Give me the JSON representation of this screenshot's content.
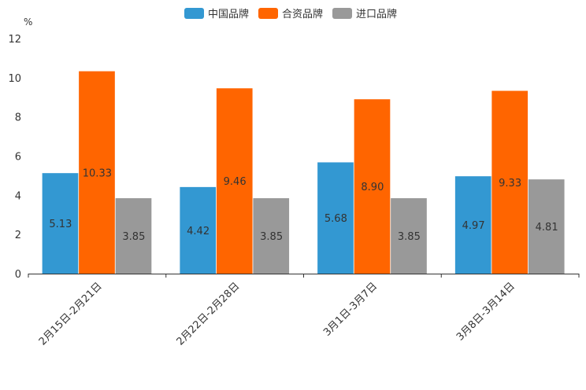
{
  "chart_data": {
    "type": "bar",
    "unit": "%",
    "categories": [
      "2月15日-2月21日",
      "2月22日-2月28日",
      "3月1日-3月7日",
      "3月8日-3月14日"
    ],
    "series": [
      {
        "name": "中国品牌",
        "color": "#3398d2",
        "values": [
          5.13,
          4.42,
          5.68,
          4.97
        ],
        "labels": [
          "5.13",
          "4.42",
          "5.68",
          "4.97"
        ]
      },
      {
        "name": "合资品牌",
        "color": "#ff6500",
        "values": [
          10.33,
          9.46,
          8.9,
          9.33
        ],
        "labels": [
          "10.33",
          "9.46",
          "8.90",
          "9.33"
        ]
      },
      {
        "name": "进口品牌",
        "color": "#999999",
        "values": [
          3.85,
          3.85,
          3.85,
          4.81
        ],
        "labels": [
          "3.85",
          "3.85",
          "3.85",
          "4.81"
        ]
      }
    ],
    "ylim": [
      0,
      12
    ],
    "yticks": [
      "0",
      "2",
      "4",
      "6",
      "8",
      "10",
      "12"
    ],
    "legend_position": "top-center",
    "grid": false
  }
}
